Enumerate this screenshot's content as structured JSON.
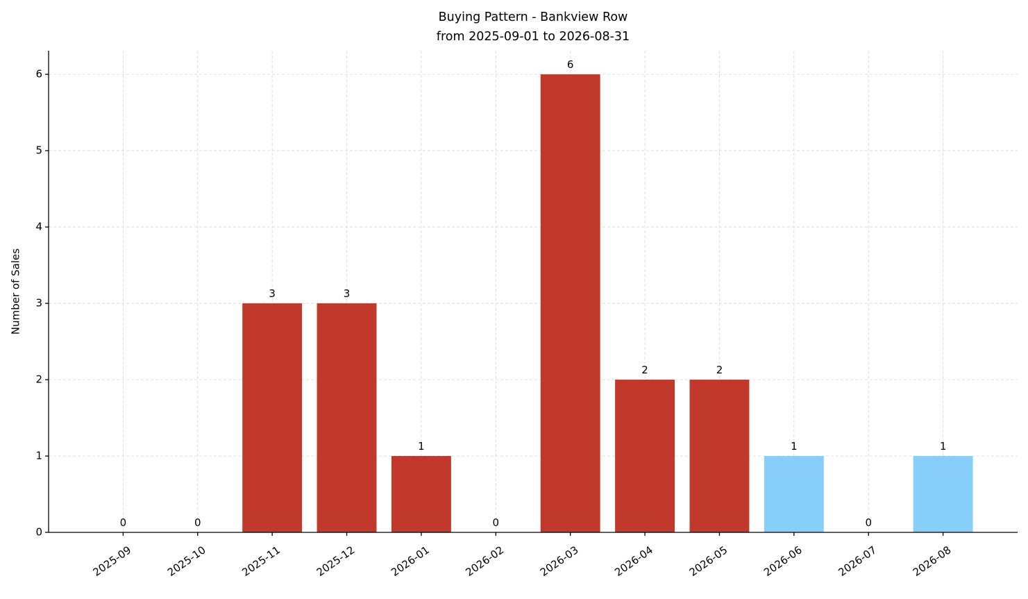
{
  "chart_data": {
    "type": "bar",
    "title": "Buying Pattern - Bankview Row",
    "subtitle": "from 2025-09-01 to 2026-08-31",
    "y_label": "Number of Sales",
    "categories": [
      "2025-09",
      "2025-10",
      "2025-11",
      "2025-12",
      "2026-01",
      "2026-02",
      "2026-03",
      "2026-04",
      "2026-05",
      "2026-06",
      "2026-07",
      "2026-08"
    ],
    "values": [
      0,
      0,
      3,
      3,
      1,
      0,
      6,
      2,
      2,
      1,
      0,
      1
    ],
    "colors": [
      "#c0392b",
      "#c0392b",
      "#c0392b",
      "#c0392b",
      "#c0392b",
      "#c0392b",
      "#c0392b",
      "#c0392b",
      "#c0392b",
      "#87cefa",
      "#87cefa",
      "#87cefa"
    ],
    "ylim": [
      0,
      6.31
    ],
    "yticks": [
      0,
      1,
      2,
      3,
      4,
      5,
      6
    ],
    "grid": true
  }
}
